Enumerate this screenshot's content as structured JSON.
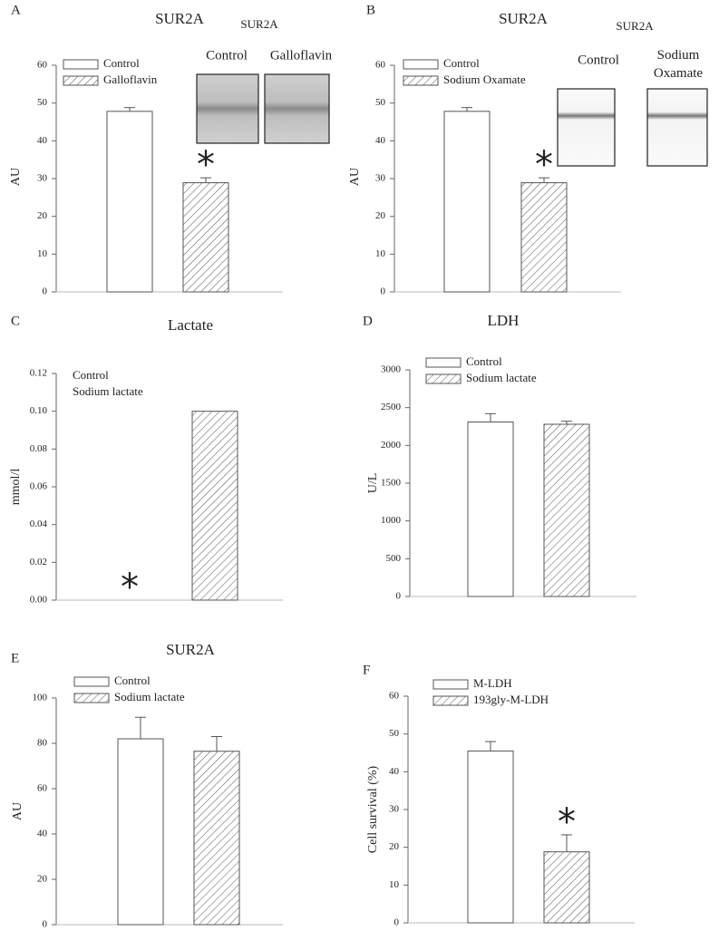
{
  "chart_data": [
    {
      "type": "bar",
      "label": "A",
      "title": "SUR2A",
      "ylabel": "AU",
      "categories": [
        null
      ],
      "series": [
        {
          "name": "Control",
          "color": "#ffffff",
          "hatch": false,
          "values": [
            47.8
          ],
          "errors": [
            1.0
          ]
        },
        {
          "name": "Galloflavin",
          "color": "#ffffff",
          "hatch": true,
          "values": [
            28.9
          ],
          "errors": [
            1.3
          ],
          "annotation": "*"
        }
      ],
      "ylim": [
        0,
        60
      ],
      "yticks": [
        0,
        10,
        20,
        30,
        40,
        50,
        60
      ],
      "legend": "upper left",
      "legend_swatches": true,
      "inset": {
        "title": "SUR2A",
        "labels": [
          "Control",
          "Galloflavin"
        ]
      }
    },
    {
      "type": "bar",
      "label": "B",
      "title": "SUR2A",
      "ylabel": "AU",
      "categories": [
        null
      ],
      "series": [
        {
          "name": "Control",
          "color": "#ffffff",
          "hatch": false,
          "values": [
            47.8
          ],
          "errors": [
            1.0
          ]
        },
        {
          "name": "Sodium Oxamate",
          "color": "#ffffff",
          "hatch": true,
          "values": [
            28.9
          ],
          "errors": [
            1.3
          ],
          "annotation": "*"
        }
      ],
      "ylim": [
        0,
        60
      ],
      "yticks": [
        0,
        10,
        20,
        30,
        40,
        50,
        60
      ],
      "legend": "upper left",
      "legend_swatches": true,
      "inset": {
        "title": "SUR2A",
        "labels": [
          "Control",
          "Sodium Oxamate"
        ]
      }
    },
    {
      "type": "bar",
      "label": "C",
      "title": "Lactate",
      "ylabel": "mmol/l",
      "categories": [
        null
      ],
      "series": [
        {
          "name": "Control",
          "color": "#ffffff",
          "hatch": false,
          "values": [
            0
          ],
          "annotation": "*"
        },
        {
          "name": "Sodium lactate",
          "color": "#ffffff",
          "hatch": true,
          "values": [
            0.1
          ]
        }
      ],
      "ylim": [
        0,
        0.12
      ],
      "yticks": [
        {
          "value": 0,
          "label": "0.00"
        },
        0.02,
        0.04,
        0.06,
        0.08,
        {
          "value": 0.1,
          "label": "0.10"
        },
        0.12
      ],
      "legend": "upper left",
      "legend_swatches": false
    },
    {
      "type": "bar",
      "label": "D",
      "title": "LDH",
      "ylabel": "U/L",
      "categories": [
        null
      ],
      "series": [
        {
          "name": "Control",
          "color": "#ffffff",
          "hatch": false,
          "values": [
            2310
          ],
          "errors": [
            110
          ]
        },
        {
          "name": "Sodium lactate",
          "color": "#ffffff",
          "hatch": true,
          "values": [
            2280
          ],
          "errors": [
            40
          ]
        }
      ],
      "ylim": [
        0,
        3000
      ],
      "yticks": [
        0,
        500,
        1000,
        1500,
        2000,
        2500,
        3000
      ],
      "legend": "upper left",
      "legend_swatches": true
    },
    {
      "type": "bar",
      "label": "E",
      "title": "SUR2A",
      "ylabel": "AU",
      "categories": [
        null
      ],
      "series": [
        {
          "name": "Control",
          "color": "#ffffff",
          "hatch": false,
          "values": [
            82
          ],
          "errors": [
            9.5
          ]
        },
        {
          "name": "Sodium lactate",
          "color": "#ffffff",
          "hatch": true,
          "values": [
            76.5
          ],
          "errors": [
            6.5
          ]
        }
      ],
      "ylim": [
        0,
        100
      ],
      "yticks": [
        0,
        20,
        40,
        60,
        80,
        100
      ],
      "legend": "upper left",
      "legend_swatches": true
    },
    {
      "type": "bar",
      "label": "F",
      "ylabel": "Cell survival (%)",
      "categories": [
        null
      ],
      "series": [
        {
          "name": "M-LDH",
          "color": "#ffffff",
          "hatch": false,
          "values": [
            45.5
          ],
          "errors": [
            2.5
          ]
        },
        {
          "name": "193gly-M-LDH",
          "color": "#ffffff",
          "hatch": true,
          "values": [
            18.8
          ],
          "errors": [
            4.5
          ],
          "annotation": "*"
        }
      ],
      "ylim": [
        0,
        60
      ],
      "yticks": [
        0,
        10,
        20,
        30,
        40,
        50,
        60
      ],
      "legend": "upper left",
      "legend_swatches": true
    }
  ]
}
